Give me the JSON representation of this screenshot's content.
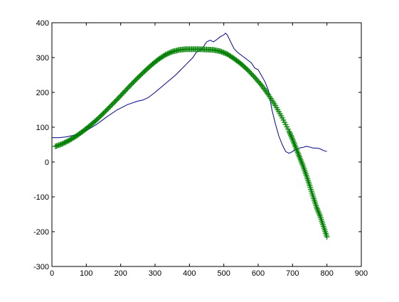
{
  "chart_data": {
    "type": "line",
    "title": "",
    "xlabel": "",
    "ylabel": "",
    "xlim": [
      0,
      900
    ],
    "ylim": [
      -300,
      400
    ],
    "xticks": [
      0,
      100,
      200,
      300,
      400,
      500,
      600,
      700,
      800,
      900
    ],
    "yticks": [
      -300,
      -200,
      -100,
      0,
      100,
      200,
      300,
      400
    ],
    "xtick_labels": [
      "0",
      "100",
      "200",
      "300",
      "400",
      "500",
      "600",
      "700",
      "800",
      "900"
    ],
    "ytick_labels": [
      "-300",
      "-200",
      "-100",
      "0",
      "100",
      "200",
      "300",
      "400"
    ],
    "grid": false,
    "legend": "none",
    "series": [
      {
        "style": "line",
        "color": "#00008b",
        "x": [
          0,
          20,
          40,
          60,
          80,
          100,
          130,
          160,
          190,
          220,
          250,
          265,
          280,
          300,
          330,
          360,
          390,
          410,
          420,
          430,
          440,
          450,
          460,
          470,
          480,
          490,
          500,
          505,
          510,
          520,
          530,
          540,
          560,
          580,
          590,
          600,
          620,
          630,
          640,
          650,
          660,
          670,
          680,
          690,
          700,
          710,
          720,
          730,
          740,
          750,
          760,
          770,
          780,
          790,
          800
        ],
        "y": [
          70,
          70,
          72,
          76,
          80,
          90,
          108,
          130,
          150,
          165,
          175,
          178,
          185,
          200,
          225,
          250,
          280,
          300,
          315,
          320,
          330,
          345,
          350,
          345,
          352,
          360,
          365,
          370,
          365,
          345,
          325,
          315,
          300,
          285,
          270,
          265,
          230,
          205,
          150,
          110,
          75,
          50,
          30,
          25,
          30,
          38,
          40,
          42,
          45,
          43,
          40,
          40,
          38,
          33,
          30
        ]
      },
      {
        "style": "markers",
        "marker": "+",
        "color": "#008000",
        "x": [
          10,
          30,
          50,
          70,
          90,
          110,
          130,
          150,
          170,
          190,
          210,
          230,
          250,
          270,
          290,
          310,
          330,
          350,
          370,
          390,
          410,
          430,
          450,
          470,
          490,
          510,
          530,
          550,
          570,
          590,
          610,
          630,
          650,
          670,
          690,
          700,
          710,
          720,
          730,
          740,
          750,
          760,
          770,
          780,
          790,
          800
        ],
        "y": [
          45,
          52,
          62,
          74,
          88,
          104,
          121,
          140,
          160,
          180,
          201,
          222,
          242,
          261,
          279,
          295,
          308,
          317,
          322,
          324,
          324,
          324,
          323,
          322,
          318,
          310,
          297,
          282,
          264,
          243,
          220,
          193,
          162,
          127,
          88,
          65,
          40,
          15,
          -10,
          -38,
          -68,
          -100,
          -130,
          -155,
          -185,
          -215
        ]
      }
    ]
  }
}
